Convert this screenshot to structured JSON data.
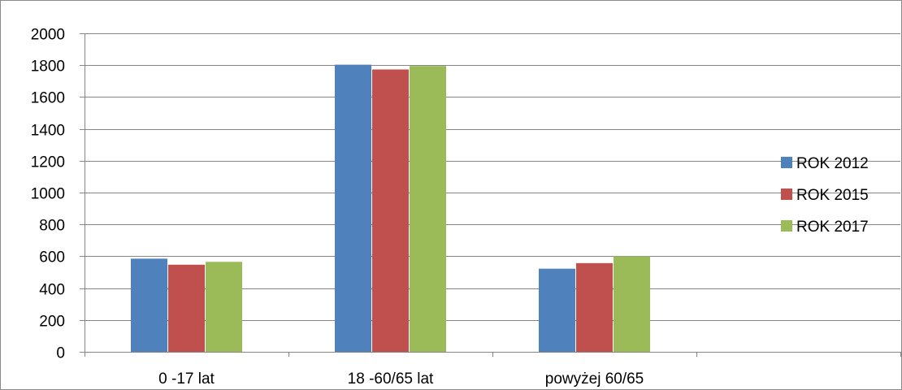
{
  "chart_data": {
    "type": "bar",
    "title": "",
    "xlabel": "",
    "ylabel": "",
    "categories": [
      "0 -17 lat",
      "18 -60/65 lat",
      "powyżej 60/65",
      ""
    ],
    "series": [
      {
        "name": "ROK 2012",
        "color": "#4f81bd",
        "values": [
          585,
          1803,
          522,
          null
        ]
      },
      {
        "name": "ROK 2015",
        "color": "#c0504d",
        "values": [
          547,
          1773,
          557,
          null
        ]
      },
      {
        "name": "ROK 2017",
        "color": "#9bbb59",
        "values": [
          565,
          1795,
          600,
          null
        ]
      }
    ],
    "ylim": [
      0,
      2000
    ],
    "yticks": [
      0,
      200,
      400,
      600,
      800,
      1000,
      1200,
      1400,
      1600,
      1800,
      2000
    ],
    "grid": true,
    "legend_position": "right"
  }
}
